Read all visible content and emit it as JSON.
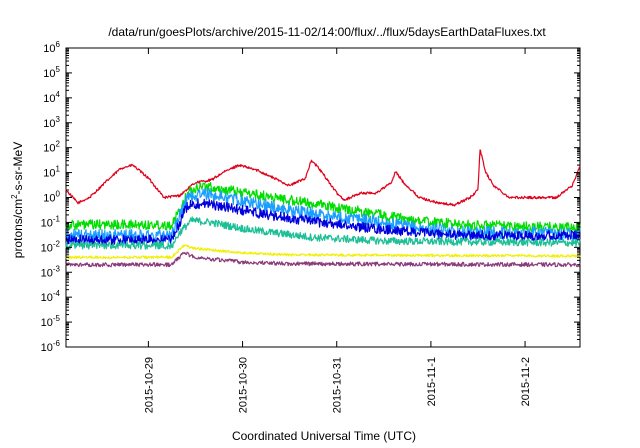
{
  "chart_data": {
    "type": "line",
    "title": "/data/run/goesPlots/archive/2015-11-02/14:00/flux/../flux/5daysEarthDataFluxes.txt",
    "xlabel": "Coordinated Universal Time (UTC)",
    "ylabel": {
      "pre": "protons/cm",
      "sup": "2",
      "post": "-s-sr-MeV"
    },
    "x_unit": "date (UTC)",
    "xlim": [
      "2015-10-28 03:00",
      "2015-11-02 14:00"
    ],
    "x_ticks": [
      "2015-10-29",
      "2015-10-30",
      "2015-10-31",
      "2015-11-1",
      "2015-11-2"
    ],
    "y_scale": "log",
    "ylim": [
      1e-06,
      1000000.0
    ],
    "y_ticks": [
      {
        "base": "10",
        "exp": "-6"
      },
      {
        "base": "10",
        "exp": "-5"
      },
      {
        "base": "10",
        "exp": "-4"
      },
      {
        "base": "10",
        "exp": "-3"
      },
      {
        "base": "10",
        "exp": "-2"
      },
      {
        "base": "10",
        "exp": "-1"
      },
      {
        "base": "10",
        "exp": "0"
      },
      {
        "base": "10",
        "exp": "1"
      },
      {
        "base": "10",
        "exp": "2"
      },
      {
        "base": "10",
        "exp": "3"
      },
      {
        "base": "10",
        "exp": "4"
      },
      {
        "base": "10",
        "exp": "5"
      },
      {
        "base": "10",
        "exp": "6"
      }
    ],
    "grid": false,
    "legend": "none",
    "series": [
      {
        "color": "#e0001b",
        "noise": 0.05,
        "points": [
          [
            "2015-10-28 03:00",
            2
          ],
          [
            "2015-10-28 06:00",
            0.6
          ],
          [
            "2015-10-28 09:00",
            1
          ],
          [
            "2015-10-28 13:00",
            4
          ],
          [
            "2015-10-28 17:00",
            15
          ],
          [
            "2015-10-28 20:00",
            20
          ],
          [
            "2015-10-29 00:00",
            6
          ],
          [
            "2015-10-29 04:00",
            1
          ],
          [
            "2015-10-29 08:00",
            1.2
          ],
          [
            "2015-10-29 12:00",
            4
          ],
          [
            "2015-10-29 16:00",
            5
          ],
          [
            "2015-10-29 19:00",
            10
          ],
          [
            "2015-10-29 23:00",
            20
          ],
          [
            "2015-10-30 04:00",
            12
          ],
          [
            "2015-10-30 08:00",
            6
          ],
          [
            "2015-10-30 12:00",
            3
          ],
          [
            "2015-10-30 16:00",
            6
          ],
          [
            "2015-10-30 17:30",
            30
          ],
          [
            "2015-10-30 19:00",
            18
          ],
          [
            "2015-10-30 21:00",
            7
          ],
          [
            "2015-10-31 00:00",
            1.5
          ],
          [
            "2015-10-31 02:00",
            0.8
          ],
          [
            "2015-10-31 06:00",
            1.5
          ],
          [
            "2015-10-31 10:00",
            1.5
          ],
          [
            "2015-10-31 14:00",
            4
          ],
          [
            "2015-10-31 15:00",
            11
          ],
          [
            "2015-10-31 17:00",
            4
          ],
          [
            "2015-10-31 21:00",
            1
          ],
          [
            "2015-11-01 02:00",
            0.6
          ],
          [
            "2015-11-01 06:00",
            0.5
          ],
          [
            "2015-11-01 10:00",
            1
          ],
          [
            "2015-11-01 12:00",
            2
          ],
          [
            "2015-11-01 12:30",
            90
          ],
          [
            "2015-11-01 14:00",
            10
          ],
          [
            "2015-11-01 16:00",
            3
          ],
          [
            "2015-11-01 20:00",
            1
          ],
          [
            "2015-11-02 02:00",
            1
          ],
          [
            "2015-11-02 08:00",
            1
          ],
          [
            "2015-11-02 12:00",
            3
          ],
          [
            "2015-11-02 14:00",
            18
          ]
        ]
      },
      {
        "color": "#00dd00",
        "noise": 0.2,
        "points": [
          [
            "2015-10-28 03:00",
            0.08
          ],
          [
            "2015-10-29 06:00",
            0.08
          ],
          [
            "2015-10-29 08:00",
            0.3
          ],
          [
            "2015-10-29 10:00",
            1.5
          ],
          [
            "2015-10-29 13:00",
            3
          ],
          [
            "2015-10-29 20:00",
            2
          ],
          [
            "2015-10-30 08:00",
            1
          ],
          [
            "2015-10-30 20:00",
            0.5
          ],
          [
            "2015-10-31 08:00",
            0.25
          ],
          [
            "2015-10-31 20:00",
            0.12
          ],
          [
            "2015-11-01 08:00",
            0.08
          ],
          [
            "2015-11-02 14:00",
            0.06
          ]
        ]
      },
      {
        "color": "#1b9eff",
        "noise": 0.25,
        "points": [
          [
            "2015-10-28 03:00",
            0.03
          ],
          [
            "2015-10-29 06:00",
            0.03
          ],
          [
            "2015-10-29 08:00",
            0.2
          ],
          [
            "2015-10-29 10:00",
            1
          ],
          [
            "2015-10-29 14:00",
            1.4
          ],
          [
            "2015-10-29 20:00",
            1
          ],
          [
            "2015-10-30 08:00",
            0.4
          ],
          [
            "2015-10-30 20:00",
            0.2
          ],
          [
            "2015-10-31 08:00",
            0.12
          ],
          [
            "2015-10-31 20:00",
            0.06
          ],
          [
            "2015-11-01 08:00",
            0.04
          ],
          [
            "2015-11-02 14:00",
            0.035
          ]
        ]
      },
      {
        "color": "#0000dd",
        "noise": 0.2,
        "points": [
          [
            "2015-10-28 03:00",
            0.02
          ],
          [
            "2015-10-29 06:00",
            0.02
          ],
          [
            "2015-10-29 08:00",
            0.1
          ],
          [
            "2015-10-29 10:00",
            0.5
          ],
          [
            "2015-10-29 14:00",
            0.6
          ],
          [
            "2015-10-29 20:00",
            0.4
          ],
          [
            "2015-10-30 08:00",
            0.18
          ],
          [
            "2015-10-30 20:00",
            0.1
          ],
          [
            "2015-10-31 08:00",
            0.06
          ],
          [
            "2015-10-31 20:00",
            0.04
          ],
          [
            "2015-11-01 08:00",
            0.03
          ],
          [
            "2015-11-02 14:00",
            0.03
          ]
        ]
      },
      {
        "color": "#1dbf96",
        "noise": 0.15,
        "points": [
          [
            "2015-10-28 03:00",
            0.012
          ],
          [
            "2015-10-29 06:00",
            0.012
          ],
          [
            "2015-10-29 08:00",
            0.04
          ],
          [
            "2015-10-29 11:00",
            0.12
          ],
          [
            "2015-10-29 16:00",
            0.1
          ],
          [
            "2015-10-30 02:00",
            0.05
          ],
          [
            "2015-10-30 18:00",
            0.025
          ],
          [
            "2015-10-31 12:00",
            0.018
          ],
          [
            "2015-11-02 14:00",
            0.015
          ]
        ]
      },
      {
        "color": "#f0f000",
        "noise": 0.05,
        "points": [
          [
            "2015-10-28 03:00",
            0.004
          ],
          [
            "2015-10-29 06:00",
            0.004
          ],
          [
            "2015-10-29 09:00",
            0.012
          ],
          [
            "2015-10-29 12:00",
            0.009
          ],
          [
            "2015-10-30 00:00",
            0.006
          ],
          [
            "2015-10-30 12:00",
            0.005
          ],
          [
            "2015-11-02 14:00",
            0.0045
          ]
        ]
      },
      {
        "color": "#8b3a7a",
        "noise": 0.08,
        "points": [
          [
            "2015-10-28 03:00",
            0.002
          ],
          [
            "2015-10-29 06:00",
            0.002
          ],
          [
            "2015-10-29 09:00",
            0.006
          ],
          [
            "2015-10-29 12:00",
            0.004
          ],
          [
            "2015-10-30 00:00",
            0.0025
          ],
          [
            "2015-10-30 12:00",
            0.0022
          ],
          [
            "2015-11-02 14:00",
            0.002
          ]
        ]
      }
    ]
  }
}
